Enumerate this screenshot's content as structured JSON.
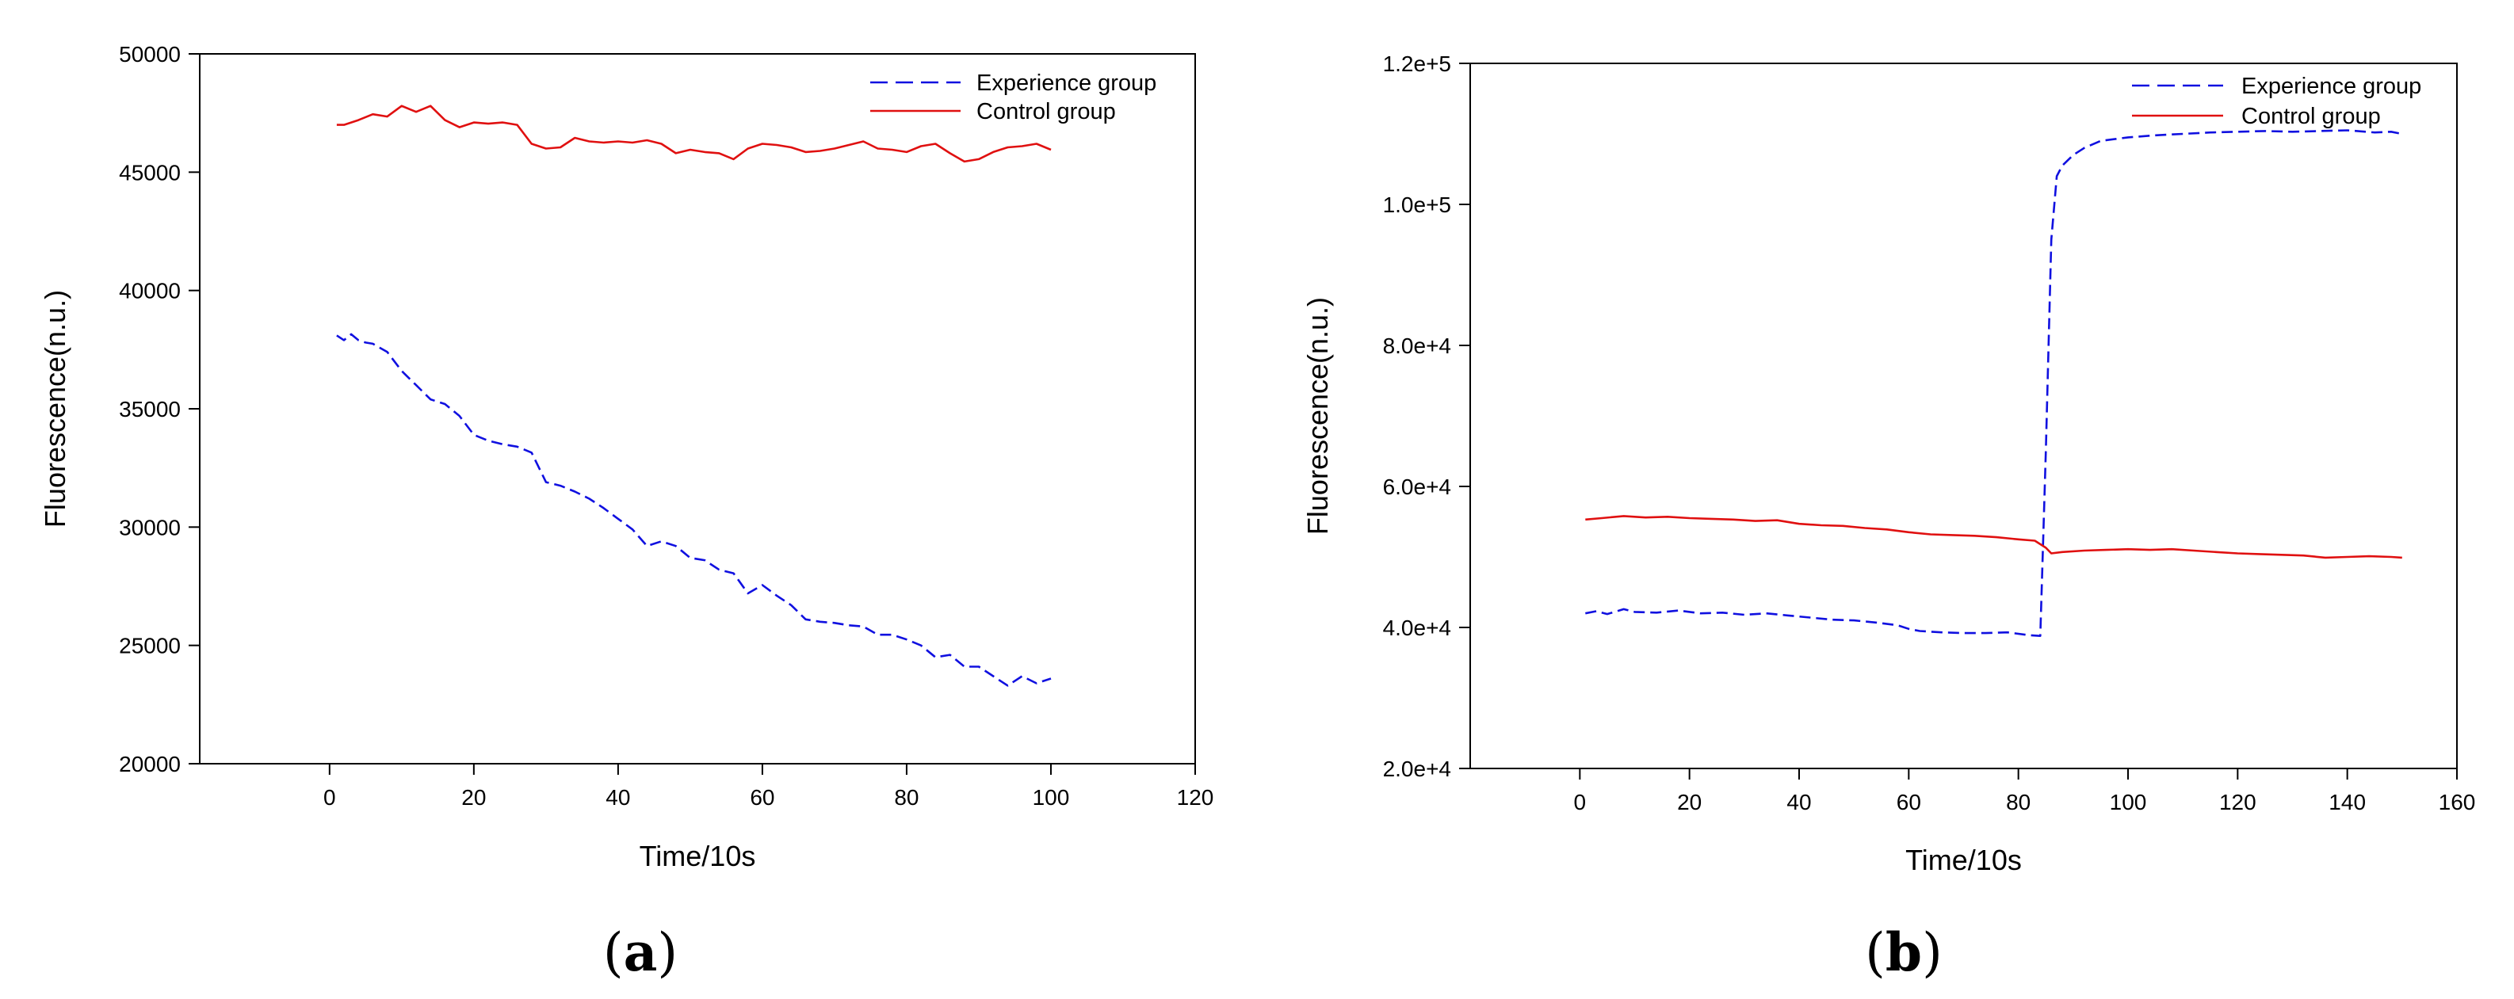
{
  "chart_data": [
    {
      "type": "line",
      "panel": "(a)",
      "panel_letter": "a",
      "xlabel": "Time/10s",
      "ylabel": "Fluorescence(n.u.)",
      "xlim": [
        -18,
        120
      ],
      "ylim": [
        20000,
        50000
      ],
      "x_ticks": [
        0,
        20,
        40,
        60,
        80,
        100,
        120
      ],
      "y_ticks": [
        20000,
        25000,
        30000,
        35000,
        40000,
        45000,
        50000
      ],
      "y_tick_labels": [
        "20000",
        "25000",
        "30000",
        "35000",
        "40000",
        "45000",
        "50000"
      ],
      "grid": false,
      "legend_position": "top-right",
      "series": [
        {
          "name": "Experience group",
          "style": "dashed",
          "color": "#1010e0",
          "x": [
            1,
            2,
            3,
            4,
            5,
            6,
            8,
            10,
            12,
            14,
            16,
            18,
            20,
            22,
            24,
            26,
            28,
            30,
            32,
            34,
            36,
            38,
            40,
            42,
            44,
            46,
            48,
            50,
            52,
            54,
            56,
            58,
            60,
            62,
            64,
            66,
            68,
            70,
            72,
            74,
            76,
            78,
            80,
            82,
            84,
            86,
            88,
            90,
            92,
            94,
            96,
            98,
            100
          ],
          "values": [
            38100,
            37900,
            38150,
            37900,
            37800,
            37750,
            37400,
            36600,
            36000,
            35400,
            35200,
            34700,
            33900,
            33650,
            33500,
            33400,
            33150,
            31900,
            31750,
            31500,
            31200,
            30800,
            30350,
            29900,
            29200,
            29400,
            29200,
            28700,
            28600,
            28200,
            28050,
            27200,
            27550,
            27100,
            26700,
            26100,
            26000,
            25950,
            25850,
            25800,
            25450,
            25450,
            25250,
            25000,
            24500,
            24600,
            24100,
            24100,
            23700,
            23300,
            23700,
            23400,
            23600
          ]
        },
        {
          "name": "Control group",
          "style": "solid",
          "color": "#e01010",
          "x": [
            1,
            2,
            4,
            6,
            8,
            10,
            12,
            14,
            16,
            18,
            20,
            22,
            24,
            26,
            28,
            30,
            32,
            34,
            36,
            38,
            40,
            42,
            44,
            46,
            48,
            50,
            52,
            54,
            56,
            58,
            60,
            62,
            64,
            66,
            68,
            70,
            72,
            74,
            76,
            78,
            80,
            82,
            84,
            86,
            88,
            90,
            92,
            94,
            96,
            98,
            100
          ],
          "values": [
            47000,
            47000,
            47200,
            47450,
            47350,
            47800,
            47550,
            47800,
            47200,
            46900,
            47100,
            47050,
            47100,
            47000,
            46200,
            46000,
            46050,
            46450,
            46300,
            46250,
            46300,
            46250,
            46350,
            46200,
            45800,
            45950,
            45850,
            45800,
            45550,
            46000,
            46200,
            46150,
            46050,
            45850,
            45900,
            46000,
            46150,
            46300,
            46000,
            45950,
            45850,
            46100,
            46200,
            45800,
            45450,
            45550,
            45850,
            46050,
            46100,
            46200,
            45950
          ]
        }
      ]
    },
    {
      "type": "line",
      "panel": "(b)",
      "panel_letter": "b",
      "xlabel": "Time/10s",
      "ylabel": "Fluorescence(n.u.)",
      "xlim": [
        -20,
        160
      ],
      "ylim": [
        20000,
        120000
      ],
      "x_ticks": [
        0,
        20,
        40,
        60,
        80,
        100,
        120,
        140,
        160
      ],
      "y_ticks": [
        20000,
        40000,
        60000,
        80000,
        100000,
        120000
      ],
      "y_tick_labels": [
        "2.0e+4",
        "4.0e+4",
        "6.0e+4",
        "8.0e+4",
        "1.0e+5",
        "1.2e+5"
      ],
      "grid": false,
      "legend_position": "top-right",
      "series": [
        {
          "name": "Experience group",
          "style": "dashed",
          "color": "#1010e0",
          "x": [
            1,
            3,
            5,
            8,
            10,
            14,
            18,
            22,
            26,
            30,
            34,
            38,
            42,
            46,
            50,
            54,
            58,
            60,
            62,
            66,
            70,
            74,
            78,
            82,
            84,
            85,
            86,
            87,
            88,
            90,
            92,
            95,
            100,
            105,
            110,
            115,
            120,
            125,
            130,
            135,
            140,
            145,
            148,
            150
          ],
          "values": [
            42000,
            42300,
            41900,
            42600,
            42200,
            42100,
            42400,
            42000,
            42100,
            41800,
            42000,
            41700,
            41400,
            41100,
            41000,
            40700,
            40300,
            39800,
            39500,
            39300,
            39200,
            39200,
            39300,
            38900,
            38800,
            65000,
            95000,
            104000,
            105500,
            107000,
            108000,
            109000,
            109500,
            109800,
            110000,
            110200,
            110300,
            110400,
            110300,
            110400,
            110500,
            110200,
            110300,
            110000
          ]
        },
        {
          "name": "Control group",
          "style": "solid",
          "color": "#e01010",
          "x": [
            1,
            4,
            8,
            12,
            16,
            20,
            24,
            28,
            32,
            36,
            40,
            44,
            48,
            52,
            56,
            60,
            64,
            68,
            72,
            76,
            80,
            83,
            85,
            86,
            88,
            92,
            96,
            100,
            104,
            108,
            112,
            116,
            120,
            124,
            128,
            132,
            136,
            140,
            144,
            148,
            150
          ],
          "values": [
            55300,
            55500,
            55800,
            55600,
            55700,
            55500,
            55400,
            55300,
            55100,
            55200,
            54700,
            54500,
            54400,
            54100,
            53900,
            53500,
            53200,
            53100,
            53000,
            52800,
            52500,
            52300,
            51300,
            50500,
            50700,
            50900,
            51000,
            51100,
            51000,
            51100,
            50900,
            50700,
            50500,
            50400,
            50300,
            50200,
            49900,
            50000,
            50100,
            50000,
            49900
          ]
        }
      ]
    }
  ]
}
